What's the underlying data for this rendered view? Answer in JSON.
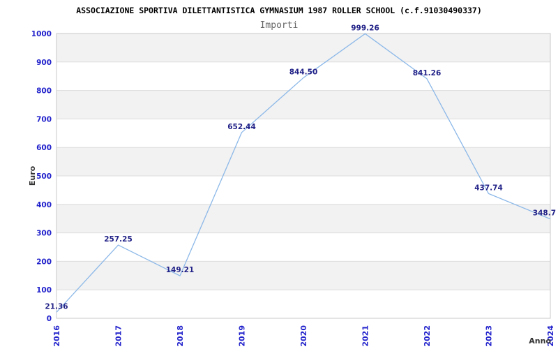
{
  "page": {
    "title": "ASSOCIAZIONE SPORTIVA DILETTANTISTICA GYMNASIUM 1987 ROLLER SCHOOL (c.f.91030490337)",
    "subtitle": "Importi"
  },
  "chart_data": {
    "type": "line",
    "title": "ASSOCIAZIONE SPORTIVA DILETTANTISTICA GYMNASIUM 1987 ROLLER SCHOOL (c.f.91030490337)",
    "subtitle": "Importi",
    "xlabel": "Anno",
    "ylabel": "Euro",
    "categories": [
      "2016",
      "2017",
      "2018",
      "2019",
      "2020",
      "2021",
      "2022",
      "2023",
      "2024"
    ],
    "series": [
      {
        "name": "Importi",
        "values": [
          21.36,
          257.25,
          149.21,
          652.44,
          844.5,
          999.26,
          841.26,
          437.74,
          348.7
        ],
        "point_labels": [
          "21.36",
          "257.25",
          "149.21",
          "652.44",
          "844.50",
          "999.26",
          "841.26",
          "437.74",
          "348.7"
        ]
      }
    ],
    "ylim": [
      0,
      1000
    ],
    "ytick_step": 100,
    "ytick_labels": [
      "0",
      "100",
      "200",
      "300",
      "400",
      "500",
      "600",
      "700",
      "800",
      "900",
      "1000"
    ],
    "grid": true,
    "alternating_bands": true,
    "legend_position": "none",
    "colors": {
      "line": "#8cb8e8",
      "tick_label": "#2222cc",
      "point_label": "#222288",
      "band_gray": "#f2f2f2",
      "band_white": "#ffffff",
      "gridline": "#dcdcdc",
      "plot_border": "#c8c8c8",
      "axis_label": "#333333",
      "title": "#000000",
      "subtitle": "#666666"
    }
  }
}
